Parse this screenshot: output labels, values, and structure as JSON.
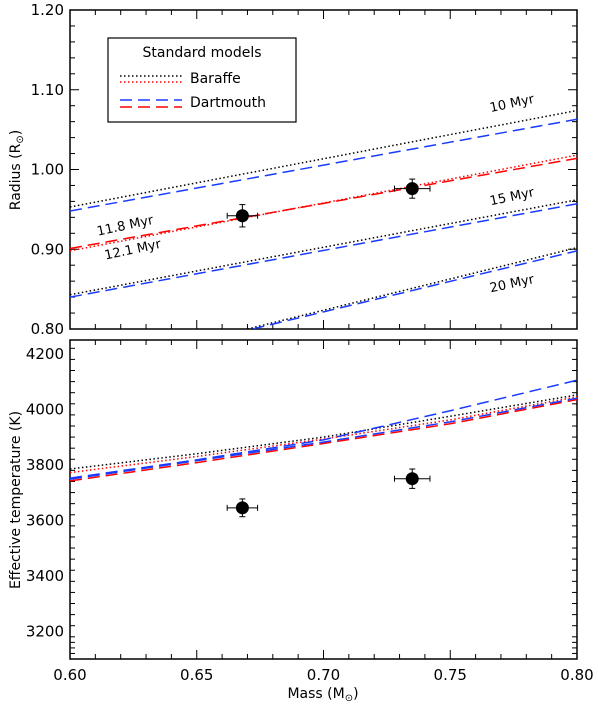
{
  "chart_data": [
    {
      "type": "line",
      "panel": "top",
      "ylabel": "Radius (R",
      "ylabel_sub": "⊙",
      "ylabel_close": ")",
      "xlim": [
        0.6,
        0.8
      ],
      "ylim": [
        0.8,
        1.2
      ],
      "x_ticks": [
        0.6,
        0.65,
        0.7,
        0.75,
        0.8
      ],
      "y_ticks": [
        "0.80",
        "0.90",
        "1.00",
        "1.10",
        "1.20"
      ],
      "y_tick_values": [
        0.8,
        0.9,
        1.0,
        1.1,
        1.2
      ],
      "legend": {
        "title": "Standard models",
        "entries": [
          {
            "label": "Baraffe",
            "styles": [
              "black-dotted",
              "red-dotted"
            ]
          },
          {
            "label": "Dartmouth",
            "styles": [
              "blue-dashed",
              "red-dashed"
            ]
          }
        ],
        "position": "top-left"
      },
      "series": [
        {
          "name": "Baraffe 10 Myr",
          "color": "#000000",
          "style": "dotted",
          "x": [
            0.6,
            0.8
          ],
          "y": [
            0.953,
            1.074
          ]
        },
        {
          "name": "Dartmouth 10 Myr",
          "color": "#1a3bff",
          "style": "dashed",
          "x": [
            0.6,
            0.8
          ],
          "y": [
            0.948,
            1.063
          ]
        },
        {
          "name": "Baraffe 11.8 Myr",
          "color": "#ff0000",
          "style": "dotted",
          "x": [
            0.6,
            0.8
          ],
          "y": [
            0.898,
            1.018
          ]
        },
        {
          "name": "Dartmouth 12.1 Myr",
          "color": "#ff0000",
          "style": "dashed",
          "x": [
            0.6,
            0.8
          ],
          "y": [
            0.901,
            1.014
          ]
        },
        {
          "name": "Baraffe 15 Myr",
          "color": "#000000",
          "style": "dotted",
          "x": [
            0.6,
            0.8
          ],
          "y": [
            0.843,
            0.962
          ]
        },
        {
          "name": "Dartmouth 15 Myr",
          "color": "#1a3bff",
          "style": "dashed",
          "x": [
            0.6,
            0.8
          ],
          "y": [
            0.84,
            0.957
          ]
        },
        {
          "name": "Baraffe 20 Myr",
          "color": "#000000",
          "style": "dotted",
          "x": [
            0.67,
            0.8
          ],
          "y": [
            0.8,
            0.902
          ]
        },
        {
          "name": "Dartmouth 20 Myr",
          "color": "#1a3bff",
          "style": "dashed",
          "x": [
            0.672,
            0.8
          ],
          "y": [
            0.8,
            0.898
          ]
        }
      ],
      "annotations": [
        {
          "text": "10 Myr",
          "x": 0.766,
          "y": 1.072,
          "angle": -12
        },
        {
          "text": "11.8 Myr",
          "x": 0.611,
          "y": 0.917,
          "angle": -12
        },
        {
          "text": "12.1 Myr",
          "x": 0.614,
          "y": 0.887,
          "angle": -12
        },
        {
          "text": "15 Myr",
          "x": 0.766,
          "y": 0.955,
          "angle": -12
        },
        {
          "text": "20 Myr",
          "x": 0.766,
          "y": 0.846,
          "angle": -12
        }
      ],
      "points": [
        {
          "x": 0.668,
          "y": 0.942,
          "xerr": 0.006,
          "yerr": 0.014
        },
        {
          "x": 0.735,
          "y": 0.976,
          "xerr": 0.007,
          "yerr": 0.012
        }
      ]
    },
    {
      "type": "line",
      "panel": "bottom",
      "xlabel": "Mass (M",
      "xlabel_sub": "⊙",
      "xlabel_close": ")",
      "ylabel": "Effective temperature (K)",
      "xlim": [
        0.6,
        0.8
      ],
      "ylim": [
        3100,
        4250
      ],
      "x_ticks": [
        "0.60",
        "0.65",
        "0.70",
        "0.75",
        "0.80"
      ],
      "x_tick_values": [
        0.6,
        0.65,
        0.7,
        0.75,
        0.8
      ],
      "y_ticks": [
        "3200",
        "3400",
        "3600",
        "3800",
        "4000",
        "4200"
      ],
      "y_tick_values": [
        3200,
        3400,
        3600,
        3800,
        4000,
        4200
      ],
      "series": [
        {
          "name": "Baraffe black",
          "color": "#000000",
          "style": "dotted",
          "x": [
            0.6,
            0.65,
            0.7,
            0.75,
            0.8
          ],
          "y": [
            3785,
            3840,
            3900,
            3975,
            4052
          ]
        },
        {
          "name": "Baraffe red",
          "color": "#ff0000",
          "style": "dotted",
          "x": [
            0.6,
            0.65,
            0.7,
            0.75,
            0.8
          ],
          "y": [
            3772,
            3830,
            3893,
            3962,
            4045
          ]
        },
        {
          "name": "Dartmouth blue",
          "color": "#1a3bff",
          "style": "dashed",
          "x": [
            0.6,
            0.65,
            0.7,
            0.75,
            0.8
          ],
          "y": [
            3752,
            3818,
            3890,
            3995,
            4105
          ]
        },
        {
          "name": "Dartmouth red",
          "color": "#ff0000",
          "style": "dashed",
          "x": [
            0.6,
            0.65,
            0.7,
            0.75,
            0.8
          ],
          "y": [
            3742,
            3808,
            3877,
            3948,
            4035
          ]
        },
        {
          "name": "Dartmouth blue 2",
          "color": "#1a3bff",
          "style": "dashed",
          "x": [
            0.6,
            0.65,
            0.7,
            0.75,
            0.8
          ],
          "y": [
            3748,
            3815,
            3882,
            3955,
            4040
          ]
        }
      ],
      "points": [
        {
          "x": 0.668,
          "y": 3645,
          "xerr": 0.006,
          "yerr": 32
        },
        {
          "x": 0.735,
          "y": 3750,
          "xerr": 0.007,
          "yerr": 35
        }
      ]
    }
  ]
}
